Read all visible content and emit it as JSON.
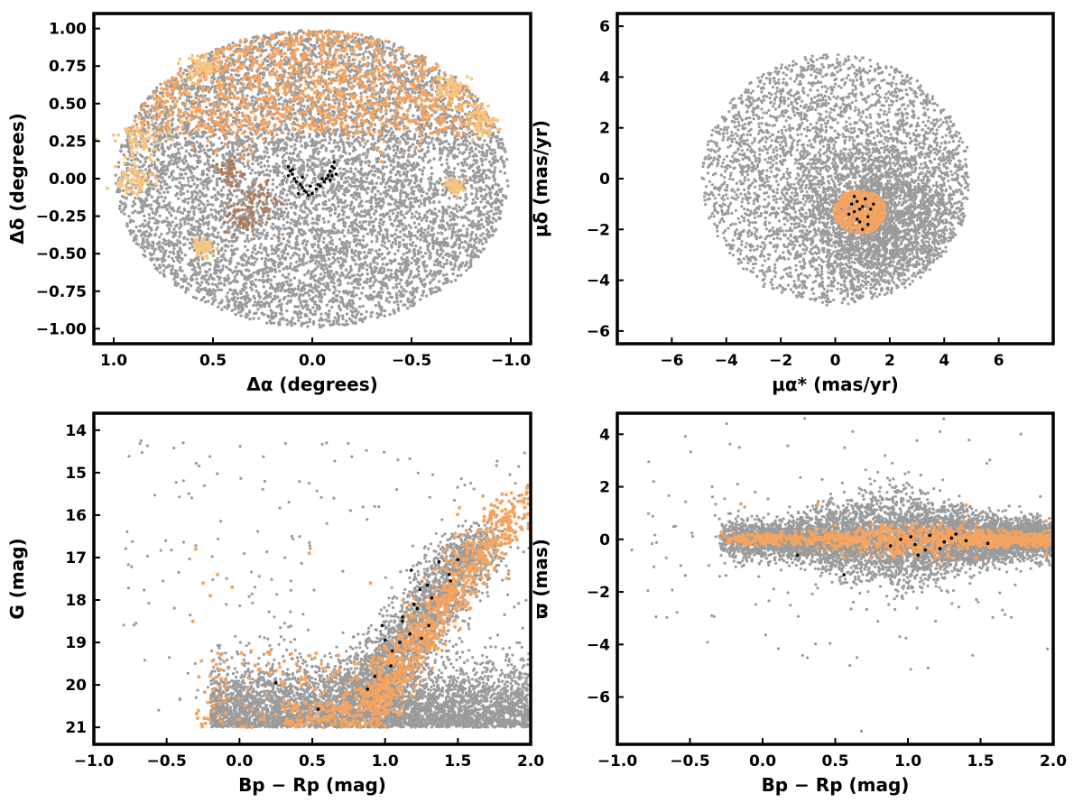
{
  "chart_data": [
    {
      "id": "sky",
      "type": "scatter",
      "xlabel": "Δα (degrees)",
      "ylabel": "Δδ (degrees)",
      "xlim": [
        1.1,
        -1.1
      ],
      "ylim": [
        -1.1,
        1.1
      ],
      "x_reversed": true,
      "xticks": [
        1.0,
        0.5,
        0.0,
        -0.5,
        -1.0
      ],
      "xtick_labels": [
        "1.0",
        "0.5",
        "0.0",
        "−0.5",
        "−1.0"
      ],
      "yticks": [
        1.0,
        0.75,
        0.5,
        0.25,
        0.0,
        -0.25,
        -0.5,
        -0.75,
        -1.0
      ],
      "ytick_labels": [
        "1.00",
        "0.75",
        "0.50",
        "0.25",
        "0.00",
        "−0.25",
        "−0.50",
        "−0.75",
        "−1.00"
      ],
      "grid": false,
      "colors": {
        "field": "#9b9b9b",
        "members": "#f4a460",
        "pale_members": "#f7c57f",
        "brown_members": "#b07a55",
        "core": "#000000"
      },
      "series": [
        {
          "role": "field",
          "color": "#9b9b9b",
          "distribution": "uniform disc, radius 1.0 deg",
          "approx_count": 9000
        },
        {
          "role": "members",
          "color": "#f4a460",
          "distribution": "dense in north half (Δδ 0.3–1.0), scattered clumps along rim",
          "approx_count": 1800
        },
        {
          "role": "brown-members",
          "color": "#b07a55",
          "distribution": "clump near Δα 0.27, Δδ −0.1 and Δα 0.4, Δδ 0.05",
          "approx_count": 120
        },
        {
          "role": "core",
          "color": "#000000",
          "distribution": "thin V-shaped chain, Δα −0.1…0.12, Δδ −0.1…0.1",
          "points": [
            [
              0.12,
              0.08
            ],
            [
              0.11,
              0.05
            ],
            [
              0.1,
              0.03
            ],
            [
              0.09,
              0.0
            ],
            [
              0.08,
              -0.02
            ],
            [
              0.06,
              -0.04
            ],
            [
              0.05,
              -0.06
            ],
            [
              0.04,
              -0.08
            ],
            [
              0.03,
              -0.09
            ],
            [
              0.02,
              -0.11
            ],
            [
              0.0,
              -0.1
            ],
            [
              -0.02,
              -0.07
            ],
            [
              -0.04,
              -0.05
            ],
            [
              -0.06,
              -0.02
            ],
            [
              -0.07,
              0.0
            ],
            [
              -0.08,
              0.02
            ],
            [
              -0.09,
              0.05
            ],
            [
              -0.1,
              0.08
            ],
            [
              -0.11,
              0.11
            ],
            [
              -0.12,
              0.03
            ],
            [
              0.07,
              -0.1
            ],
            [
              -0.05,
              0.0
            ],
            [
              0.1,
              0.06
            ],
            [
              0.05,
              0.01
            ],
            [
              -0.1,
              0.02
            ],
            [
              -0.11,
              0.07
            ],
            [
              0.12,
              0.02
            ],
            [
              -0.09,
              -0.01
            ],
            [
              0.01,
              -0.05
            ],
            [
              -0.03,
              -0.04
            ]
          ]
        }
      ]
    },
    {
      "id": "proper-motion",
      "type": "scatter",
      "xlabel": "μα* (mas/yr)",
      "ylabel": "μδ (mas/yr)",
      "xlim": [
        -8,
        8
      ],
      "ylim": [
        -6.5,
        6.5
      ],
      "xticks": [
        -6,
        -4,
        -2,
        0,
        2,
        4,
        6
      ],
      "xtick_labels": [
        "−6",
        "−4",
        "−2",
        "0",
        "2",
        "4",
        "6"
      ],
      "yticks": [
        6,
        4,
        2,
        0,
        -2,
        -4,
        -6
      ],
      "ytick_labels": [
        "6",
        "4",
        "2",
        "0",
        "−2",
        "−4",
        "−6"
      ],
      "grid": false,
      "series": [
        {
          "role": "field",
          "color": "#9b9b9b",
          "distribution": "disc centred (0,0) radius ~5, densest near (1.5,−1.5)",
          "approx_count": 7000
        },
        {
          "role": "members",
          "color": "#f4a460",
          "distribution": "compact clump centred (0.9,−1.3), radius ~0.9",
          "approx_count": 500
        },
        {
          "role": "core",
          "color": "#000000",
          "distribution": "within member clump",
          "points": [
            [
              0.8,
              -0.9
            ],
            [
              1.0,
              -1.1
            ],
            [
              0.7,
              -1.3
            ],
            [
              1.2,
              -1.5
            ],
            [
              0.9,
              -1.7
            ],
            [
              1.1,
              -0.8
            ],
            [
              0.6,
              -1.0
            ],
            [
              1.0,
              -2.0
            ],
            [
              0.8,
              -1.6
            ],
            [
              1.3,
              -1.2
            ],
            [
              0.5,
              -1.4
            ],
            [
              1.4,
              -1.0
            ],
            [
              0.9,
              -1.2
            ],
            [
              1.2,
              -1.8
            ],
            [
              0.7,
              -0.7
            ]
          ]
        }
      ]
    },
    {
      "id": "cmd",
      "type": "scatter",
      "xlabel": "Bp − Rp (mag)",
      "ylabel": "G (mag)",
      "xlim": [
        -1.0,
        2.0
      ],
      "ylim": [
        21.4,
        13.6
      ],
      "y_reversed": true,
      "xticks": [
        -1.0,
        -0.5,
        0.0,
        0.5,
        1.0,
        1.5,
        2.0
      ],
      "xtick_labels": [
        "−1.0",
        "−0.5",
        "0.0",
        "0.5",
        "1.0",
        "1.5",
        "2.0"
      ],
      "yticks": [
        21,
        20,
        19,
        18,
        17,
        16,
        15,
        14
      ],
      "ytick_labels": [
        "21",
        "20",
        "19",
        "18",
        "17",
        "16",
        "15",
        "14"
      ],
      "grid": false,
      "series": [
        {
          "role": "field",
          "color": "#9b9b9b",
          "distribution": "faint band G 19.5–21 across colours, sequence from (0.9,19.5) down to (1.6,16.5)",
          "approx_count": 7000
        },
        {
          "role": "members",
          "color": "#f4a460",
          "distribution": "main sequence from (0.9,20.5) to (1.9,15.7)",
          "approx_count": 1100
        },
        {
          "role": "core",
          "color": "#000000",
          "distribution": "along main sequence",
          "points": [
            [
              0.54,
              20.57
            ],
            [
              0.25,
              19.95
            ],
            [
              0.88,
              20.1
            ],
            [
              0.93,
              19.8
            ],
            [
              1.04,
              19.55
            ],
            [
              1.05,
              19.2
            ],
            [
              1.0,
              18.95
            ],
            [
              1.17,
              18.8
            ],
            [
              1.3,
              18.6
            ],
            [
              1.12,
              18.5
            ],
            [
              1.12,
              18.4
            ],
            [
              1.22,
              18.2
            ],
            [
              1.2,
              18.1
            ],
            [
              1.32,
              17.95
            ],
            [
              1.24,
              17.75
            ],
            [
              1.29,
              17.65
            ],
            [
              1.45,
              17.55
            ],
            [
              1.44,
              17.4
            ],
            [
              1.18,
              17.3
            ],
            [
              1.37,
              17.1
            ],
            [
              1.5,
              17.05
            ],
            [
              0.98,
              18.6
            ],
            [
              1.25,
              18.9
            ],
            [
              1.1,
              19.0
            ]
          ]
        }
      ]
    },
    {
      "id": "parallax",
      "type": "scatter",
      "xlabel": "Bp − Rp (mag)",
      "ylabel": "ϖ (mas)",
      "xlim": [
        -1.0,
        2.0
      ],
      "ylim": [
        -7.8,
        4.8
      ],
      "xticks": [
        -1.0,
        -0.5,
        0.0,
        0.5,
        1.0,
        1.5,
        2.0
      ],
      "xtick_labels": [
        "−1.0",
        "−0.5",
        "0.0",
        "0.5",
        "1.0",
        "1.5",
        "2.0"
      ],
      "yticks": [
        4,
        2,
        0,
        -2,
        -4,
        -6
      ],
      "ytick_labels": [
        "4",
        "2",
        "0",
        "−2",
        "−4",
        "−6"
      ],
      "grid": false,
      "series": [
        {
          "role": "field",
          "color": "#9b9b9b",
          "distribution": "horizontal band around ϖ = 0, spread ±1.5 widest near colour 0.9",
          "approx_count": 7000
        },
        {
          "role": "members",
          "color": "#f4a460",
          "distribution": "narrow band ϖ −0.6…0.6, colours −0.3…2.0",
          "approx_count": 1100
        },
        {
          "role": "core",
          "color": "#000000",
          "distribution": "near ϖ 0",
          "points": [
            [
              0.56,
              -1.35
            ],
            [
              0.24,
              -0.6
            ],
            [
              1.07,
              -0.6
            ],
            [
              1.22,
              -0.35
            ],
            [
              1.25,
              -0.1
            ],
            [
              1.3,
              0.05
            ],
            [
              1.02,
              0.1
            ],
            [
              1.05,
              -0.2
            ],
            [
              1.15,
              0.15
            ],
            [
              1.4,
              -0.05
            ],
            [
              1.55,
              -0.15
            ],
            [
              0.95,
              0.0
            ],
            [
              1.12,
              -0.4
            ],
            [
              1.33,
              0.2
            ],
            [
              0.88,
              -0.25
            ]
          ]
        }
      ]
    }
  ]
}
